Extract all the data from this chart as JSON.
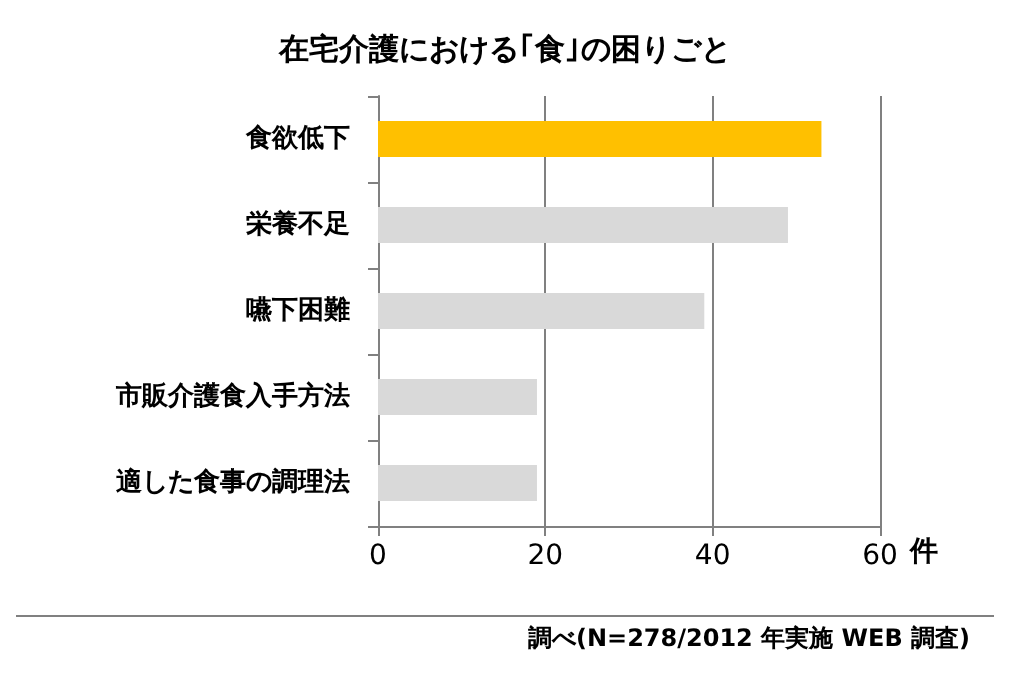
{
  "chart_data": {
    "type": "bar",
    "orientation": "horizontal",
    "title": "在宅介護における｢食｣の困りごと",
    "categories": [
      "食欲低下",
      "栄養不足",
      "嚥下困難",
      "市販介護食入手方法",
      "適した食事の調理法"
    ],
    "values": [
      53,
      49,
      39,
      19,
      19
    ],
    "colors": [
      "#ffc000",
      "#d9d9d9",
      "#d9d9d9",
      "#d9d9d9",
      "#d9d9d9"
    ],
    "xlim": [
      0,
      60
    ],
    "xticks": [
      0,
      20,
      40,
      60
    ],
    "xlabel": "件",
    "grid": "x",
    "annotations": [
      "調べ(N=278/2012 年実施 WEB 調査)"
    ]
  }
}
